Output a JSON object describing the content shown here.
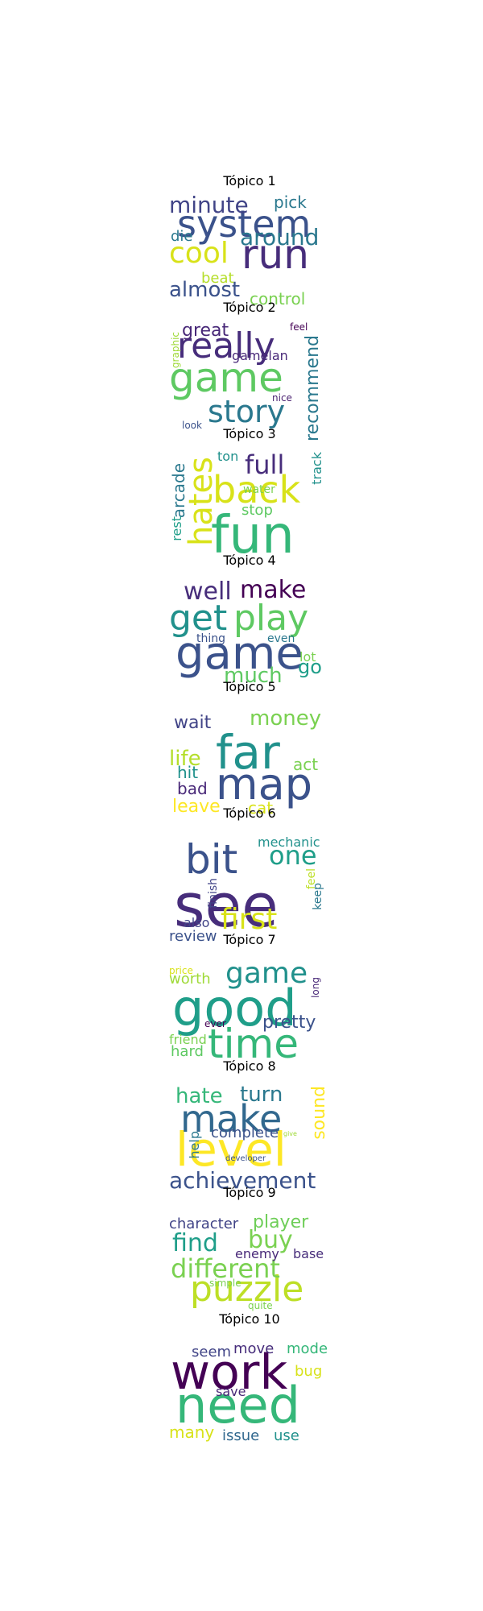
{
  "topics": [
    {
      "title": "Tópico 1",
      "words": [
        "system",
        "run",
        "cool",
        "minute",
        "around",
        "almost",
        "control",
        "pick",
        "die",
        "beat"
      ],
      "colors": [
        "#3b528b",
        "#472d7b",
        "#d8e219",
        "#414487",
        "#2a788e",
        "#3b528b",
        "#7ad151",
        "#2a788e",
        "#2a788e",
        "#b5de2b"
      ]
    },
    {
      "title": "Tópico 2",
      "words": [
        "game",
        "really",
        "story",
        "great",
        "recommend",
        "gamelan",
        "nice",
        "graphic",
        "feel",
        "look"
      ],
      "colors": [
        "#5ec962",
        "#472d7b",
        "#2a788e",
        "#482878",
        "#2a788e",
        "#482878",
        "#481f70",
        "#a0da39",
        "#440154",
        "#3b528b"
      ]
    },
    {
      "title": "Tópico 3",
      "words": [
        "fun",
        "back",
        "hates",
        "full",
        "arcade",
        "stop",
        "track",
        "rest",
        "ton",
        "water"
      ],
      "colors": [
        "#35b779",
        "#d8e219",
        "#d8e219",
        "#472d7b",
        "#2a788e",
        "#5ec962",
        "#21918c",
        "#1f9e89",
        "#21918c",
        "#7ad151"
      ]
    },
    {
      "title": "Tópico 4",
      "words": [
        "game",
        "play",
        "get",
        "well",
        "make",
        "much",
        "go",
        "lot",
        "thing",
        "even"
      ],
      "colors": [
        "#3b528b",
        "#5ec962",
        "#21918c",
        "#472d7b",
        "#440154",
        "#5ec962",
        "#1f9e89",
        "#7ad151",
        "#3b528b",
        "#2a788e"
      ]
    },
    {
      "title": "Tópico 5",
      "words": [
        "far",
        "map",
        "money",
        "life",
        "wait",
        "hit",
        "bad",
        "act",
        "leave",
        "cat"
      ],
      "colors": [
        "#21918c",
        "#3b528b",
        "#7ad151",
        "#b5de2b",
        "#414487",
        "#21918c",
        "#482878",
        "#7ad151",
        "#fde725",
        "#d8e219"
      ]
    },
    {
      "title": "Tópico 6",
      "words": [
        "see",
        "bit",
        "one",
        "first",
        "review",
        "also",
        "mechanic",
        "keep",
        "feel",
        "finish"
      ],
      "colors": [
        "#472d7b",
        "#3b528b",
        "#1f9e89",
        "#d8e219",
        "#3b528b",
        "#414487",
        "#21918c",
        "#2a788e",
        "#bddf26",
        "#414487"
      ]
    },
    {
      "title": "Tópico 7",
      "words": [
        "good",
        "time",
        "game",
        "pretty",
        "worth",
        "hard",
        "friend",
        "price",
        "ever",
        "long"
      ],
      "colors": [
        "#1f9e89",
        "#35b779",
        "#21918c",
        "#3b528b",
        "#a0da39",
        "#5ec962",
        "#7ad151",
        "#d8e219",
        "#440154",
        "#482878"
      ]
    },
    {
      "title": "Tópico 8",
      "words": [
        "level",
        "make",
        "achievement",
        "hate",
        "turn",
        "sound",
        "complete",
        "help",
        "developer",
        "give"
      ],
      "colors": [
        "#fde725",
        "#31688e",
        "#3b528b",
        "#35b779",
        "#2a788e",
        "#fde725",
        "#3b528b",
        "#2a788e",
        "#3b528b",
        "#a0da39"
      ]
    },
    {
      "title": "Tópico 9",
      "words": [
        "puzzle",
        "different",
        "find",
        "buy",
        "player",
        "character",
        "enemy",
        "base",
        "simple",
        "quite"
      ],
      "colors": [
        "#bddf26",
        "#7ad151",
        "#1f9e89",
        "#7ad151",
        "#6ece58",
        "#414487",
        "#482878",
        "#472d7b",
        "#7ad151",
        "#7ad151"
      ]
    },
    {
      "title": "Tópico 10",
      "words": [
        "need",
        "work",
        "seem",
        "move",
        "mode",
        "bug",
        "save",
        "many",
        "issue",
        "use"
      ],
      "colors": [
        "#35b779",
        "#440154",
        "#414487",
        "#472d7b",
        "#35b779",
        "#d8e219",
        "#482878",
        "#d8e219",
        "#31688e",
        "#21918c"
      ]
    }
  ]
}
